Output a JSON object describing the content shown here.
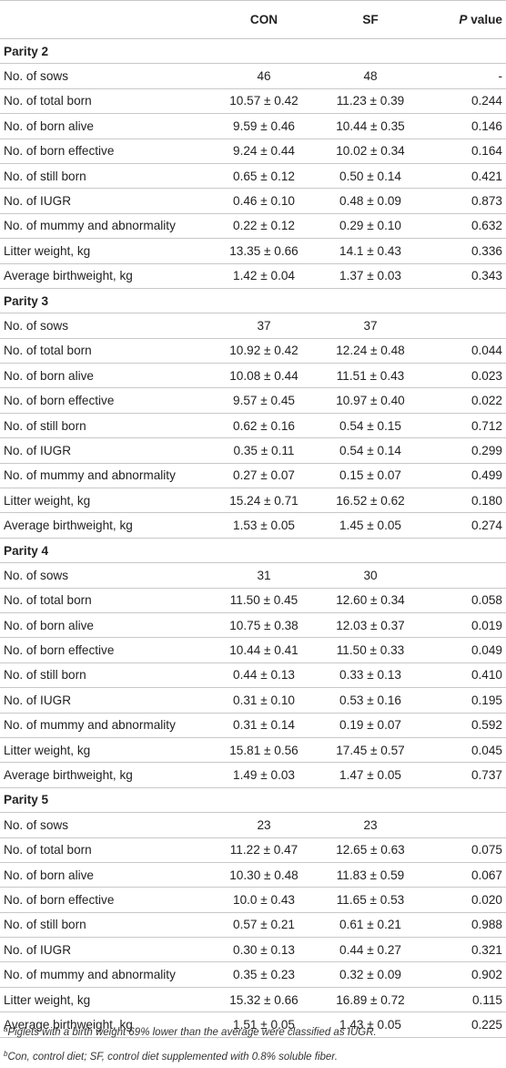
{
  "header": {
    "col1": "",
    "col2": "CON",
    "col3": "SF",
    "p_prefix": "P",
    "p_suffix": " value"
  },
  "groups": [
    {
      "title": "Parity 2",
      "rows": [
        {
          "label": "No. of sows",
          "con": "46",
          "sf": "48",
          "p": "-"
        },
        {
          "label": "No. of total born",
          "con": "10.57 ± 0.42",
          "sf": "11.23 ± 0.39",
          "p": "0.244"
        },
        {
          "label": "No. of born alive",
          "con": "9.59 ± 0.46",
          "sf": "10.44 ± 0.35",
          "p": "0.146"
        },
        {
          "label": "No. of born effective",
          "con": "9.24 ± 0.44",
          "sf": "10.02 ± 0.34",
          "p": "0.164"
        },
        {
          "label": "No. of still born",
          "con": "0.65 ± 0.12",
          "sf": "0.50 ± 0.14",
          "p": "0.421"
        },
        {
          "label": "No. of IUGR",
          "con": "0.46 ± 0.10",
          "sf": "0.48 ± 0.09",
          "p": "0.873"
        },
        {
          "label": "No. of mummy and abnormality",
          "con": "0.22 ± 0.12",
          "sf": "0.29 ± 0.10",
          "p": "0.632"
        },
        {
          "label": "Litter weight, kg",
          "con": "13.35 ± 0.66",
          "sf": "14.1 ± 0.43",
          "p": "0.336"
        },
        {
          "label": "Average birthweight, kg",
          "con": "1.42 ± 0.04",
          "sf": "1.37 ± 0.03",
          "p": "0.343"
        }
      ]
    },
    {
      "title": "Parity 3",
      "rows": [
        {
          "label": "No. of sows",
          "con": "37",
          "sf": "37",
          "p": ""
        },
        {
          "label": "No. of total born",
          "con": "10.92 ± 0.42",
          "sf": "12.24 ± 0.48",
          "p": "0.044"
        },
        {
          "label": "No. of born alive",
          "con": "10.08 ± 0.44",
          "sf": "11.51 ± 0.43",
          "p": "0.023"
        },
        {
          "label": "No. of born effective",
          "con": "9.57 ± 0.45",
          "sf": "10.97 ± 0.40",
          "p": "0.022"
        },
        {
          "label": "No. of still born",
          "con": "0.62 ± 0.16",
          "sf": "0.54 ± 0.15",
          "p": "0.712"
        },
        {
          "label": "No. of IUGR",
          "con": "0.35 ± 0.11",
          "sf": "0.54 ± 0.14",
          "p": "0.299"
        },
        {
          "label": "No. of mummy and abnormality",
          "con": "0.27 ± 0.07",
          "sf": "0.15 ± 0.07",
          "p": "0.499"
        },
        {
          "label": "Litter weight, kg",
          "con": "15.24 ± 0.71",
          "sf": "16.52 ± 0.62",
          "p": "0.180"
        },
        {
          "label": "Average birthweight, kg",
          "con": "1.53 ± 0.05",
          "sf": "1.45 ± 0.05",
          "p": "0.274"
        }
      ]
    },
    {
      "title": "Parity 4",
      "rows": [
        {
          "label": "No. of sows",
          "con": "31",
          "sf": "30",
          "p": ""
        },
        {
          "label": "No. of total born",
          "con": "11.50 ± 0.45",
          "sf": "12.60 ± 0.34",
          "p": "0.058"
        },
        {
          "label": "No. of born alive",
          "con": "10.75 ± 0.38",
          "sf": "12.03 ± 0.37",
          "p": "0.019"
        },
        {
          "label": "No. of born effective",
          "con": "10.44 ± 0.41",
          "sf": "11.50 ± 0.33",
          "p": "0.049"
        },
        {
          "label": "No. of still born",
          "con": "0.44 ± 0.13",
          "sf": "0.33 ± 0.13",
          "p": "0.410"
        },
        {
          "label": "No. of IUGR",
          "con": "0.31 ± 0.10",
          "sf": "0.53 ± 0.16",
          "p": "0.195"
        },
        {
          "label": "No. of mummy and abnormality",
          "con": "0.31 ± 0.14",
          "sf": "0.19 ± 0.07",
          "p": "0.592"
        },
        {
          "label": "Litter weight, kg",
          "con": "15.81 ± 0.56",
          "sf": "17.45 ± 0.57",
          "p": "0.045"
        },
        {
          "label": "Average birthweight, kg",
          "con": "1.49 ± 0.03",
          "sf": "1.47 ± 0.05",
          "p": "0.737"
        }
      ]
    },
    {
      "title": "Parity 5",
      "rows": [
        {
          "label": "No. of sows",
          "con": "23",
          "sf": "23",
          "p": ""
        },
        {
          "label": "No. of total born",
          "con": "11.22 ± 0.47",
          "sf": "12.65 ± 0.63",
          "p": "0.075"
        },
        {
          "label": "No. of born alive",
          "con": "10.30 ± 0.48",
          "sf": "11.83 ± 0.59",
          "p": "0.067"
        },
        {
          "label": "No. of born effective",
          "con": "10.0 ± 0.43",
          "sf": "11.65 ± 0.53",
          "p": "0.020"
        },
        {
          "label": "No. of still born",
          "con": "0.57 ± 0.21",
          "sf": "0.61 ± 0.21",
          "p": "0.988"
        },
        {
          "label": "No. of IUGR",
          "con": "0.30 ± 0.13",
          "sf": "0.44 ± 0.27",
          "p": "0.321"
        },
        {
          "label": "No. of mummy and abnormality",
          "con": "0.35 ± 0.23",
          "sf": "0.32 ± 0.09",
          "p": "0.902"
        },
        {
          "label": "Litter weight, kg",
          "con": "15.32 ± 0.66",
          "sf": "16.89 ± 0.72",
          "p": "0.115"
        },
        {
          "label": "Average birthweight, kg",
          "con": "1.51 ± 0.05",
          "sf": "1.43 ± 0.05",
          "p": "0.225"
        }
      ]
    }
  ],
  "footnotes": [
    {
      "mark": "a",
      "text": "Piglets with a birth weight 69% lower than the average were classified as IUGR."
    },
    {
      "mark": "b",
      "text": "Con, control diet; SF, control diet supplemented with 0.8% soluble fiber."
    }
  ]
}
